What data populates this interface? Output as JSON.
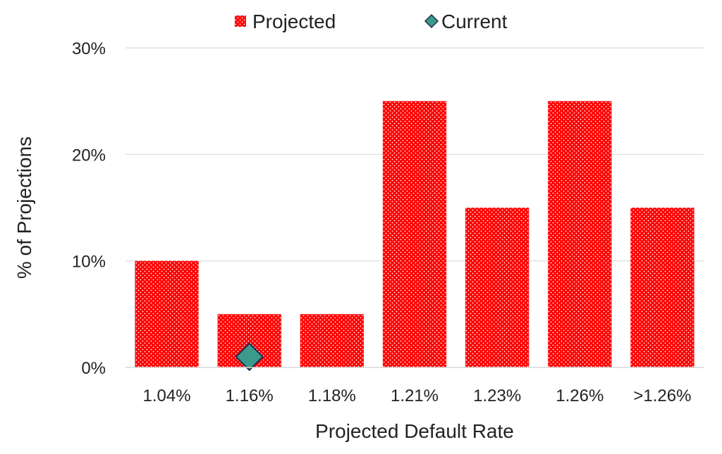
{
  "chart_data": {
    "type": "bar",
    "xlabel": "Projected Default Rate",
    "ylabel": "% of Projections",
    "categories": [
      "1.04%",
      "1.16%",
      "1.18%",
      "1.21%",
      "1.23%",
      "1.26%",
      ">1.26%"
    ],
    "ylim": [
      0,
      30
    ],
    "yticks": [
      0,
      10,
      20,
      30
    ],
    "ytick_labels": [
      "0%",
      "10%",
      "20%",
      "30%"
    ],
    "grid": true,
    "legend_position": "top",
    "series": [
      {
        "name": "Projected",
        "kind": "bar",
        "color": "#ff0000",
        "pattern": "dotted",
        "values": [
          10,
          5,
          5,
          25,
          15,
          25,
          15
        ]
      },
      {
        "name": "Current",
        "kind": "marker",
        "marker": "diamond",
        "color": "#3c9a8c",
        "category": "1.16%",
        "value": 1
      }
    ]
  }
}
